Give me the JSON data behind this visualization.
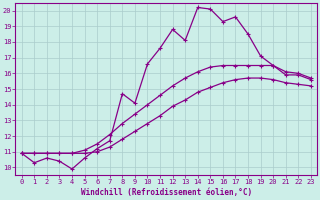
{
  "xlabel": "Windchill (Refroidissement éolien,°C)",
  "background_color": "#cceee8",
  "grid_color": "#aacccc",
  "line_color": "#880088",
  "xlim": [
    -0.5,
    23.5
  ],
  "ylim": [
    9.5,
    20.5
  ],
  "xticks": [
    0,
    1,
    2,
    3,
    4,
    5,
    6,
    7,
    8,
    9,
    10,
    11,
    12,
    13,
    14,
    15,
    16,
    17,
    18,
    19,
    20,
    21,
    22,
    23
  ],
  "yticks": [
    10,
    11,
    12,
    13,
    14,
    15,
    16,
    17,
    18,
    19,
    20
  ],
  "series": [
    {
      "x": [
        0,
        1,
        2,
        3,
        4,
        5,
        6,
        7,
        8,
        9,
        10,
        11,
        12,
        13,
        14,
        15,
        16,
        17,
        18,
        19,
        20,
        21,
        22,
        23
      ],
      "y": [
        10.9,
        10.3,
        10.6,
        10.4,
        9.9,
        10.6,
        11.2,
        11.7,
        14.7,
        14.1,
        16.6,
        17.6,
        18.8,
        18.1,
        20.2,
        20.1,
        19.3,
        19.6,
        18.5,
        17.1,
        16.5,
        15.9,
        15.9,
        15.6
      ]
    },
    {
      "x": [
        0,
        1,
        2,
        3,
        4,
        5,
        6,
        7,
        8,
        9,
        10,
        11,
        12,
        13,
        14,
        15,
        16,
        17,
        18,
        19,
        20,
        21,
        22,
        23
      ],
      "y": [
        10.9,
        10.9,
        10.9,
        10.9,
        10.9,
        11.1,
        11.5,
        12.1,
        12.8,
        13.4,
        14.0,
        14.6,
        15.2,
        15.7,
        16.1,
        16.4,
        16.5,
        16.5,
        16.5,
        16.5,
        16.5,
        16.1,
        16.0,
        15.7
      ]
    },
    {
      "x": [
        0,
        1,
        2,
        3,
        4,
        5,
        6,
        7,
        8,
        9,
        10,
        11,
        12,
        13,
        14,
        15,
        16,
        17,
        18,
        19,
        20,
        21,
        22,
        23
      ],
      "y": [
        10.9,
        10.9,
        10.9,
        10.9,
        10.9,
        10.9,
        11.0,
        11.3,
        11.8,
        12.3,
        12.8,
        13.3,
        13.9,
        14.3,
        14.8,
        15.1,
        15.4,
        15.6,
        15.7,
        15.7,
        15.6,
        15.4,
        15.3,
        15.2
      ]
    }
  ]
}
